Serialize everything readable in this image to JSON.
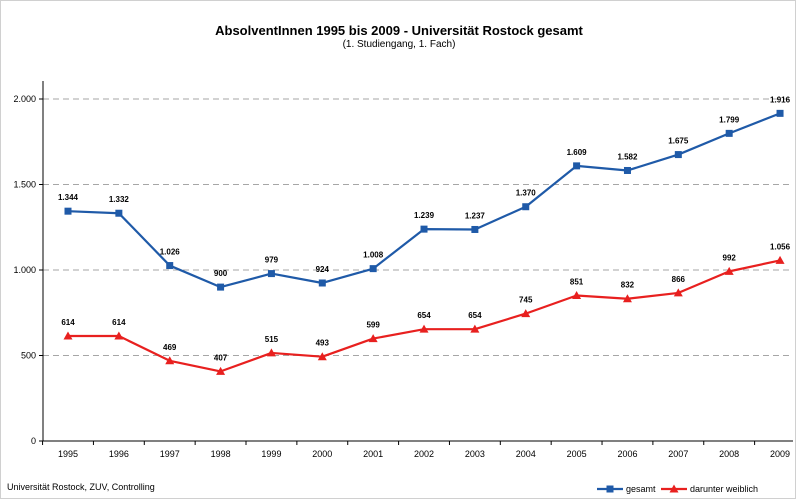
{
  "chart_data": {
    "type": "line",
    "title": "AbsolventInnen 1995 bis 2009 - Universität Rostock gesamt",
    "subtitle": "(1. Studiengang, 1. Fach)",
    "categories": [
      "1995",
      "1996",
      "1997",
      "1998",
      "1999",
      "2000",
      "2001",
      "2002",
      "2003",
      "2004",
      "2005",
      "2006",
      "2007",
      "2008",
      "2009"
    ],
    "series": [
      {
        "name": "gesamt",
        "color": "#1f5aa8",
        "marker": "square",
        "values": [
          1344,
          1332,
          1026,
          900,
          979,
          924,
          1008,
          1239,
          1237,
          1370,
          1609,
          1582,
          1675,
          1799,
          1916
        ],
        "labels": [
          "1.344",
          "1.332",
          "1.026",
          "900",
          "979",
          "924",
          "1.008",
          "1.239",
          "1.237",
          "1.370",
          "1.609",
          "1.582",
          "1.675",
          "1.799",
          "1.916"
        ]
      },
      {
        "name": "darunter weiblich",
        "color": "#e8201f",
        "marker": "triangle",
        "values": [
          614,
          614,
          469,
          407,
          515,
          493,
          599,
          654,
          654,
          745,
          851,
          832,
          866,
          992,
          1056
        ],
        "labels": [
          "614",
          "614",
          "469",
          "407",
          "515",
          "493",
          "599",
          "654",
          "654",
          "745",
          "851",
          "832",
          "866",
          "992",
          "1.056"
        ]
      }
    ],
    "ylim": [
      0,
      2000
    ],
    "yticks": [
      0,
      500,
      1000,
      1500,
      2000
    ],
    "ytick_labels": [
      "0",
      "500",
      "1.000",
      "1.500",
      "2.000"
    ],
    "grid": true,
    "legend_position": "bottom-right"
  },
  "footer": "Universität Rostock, ZUV, Controlling"
}
